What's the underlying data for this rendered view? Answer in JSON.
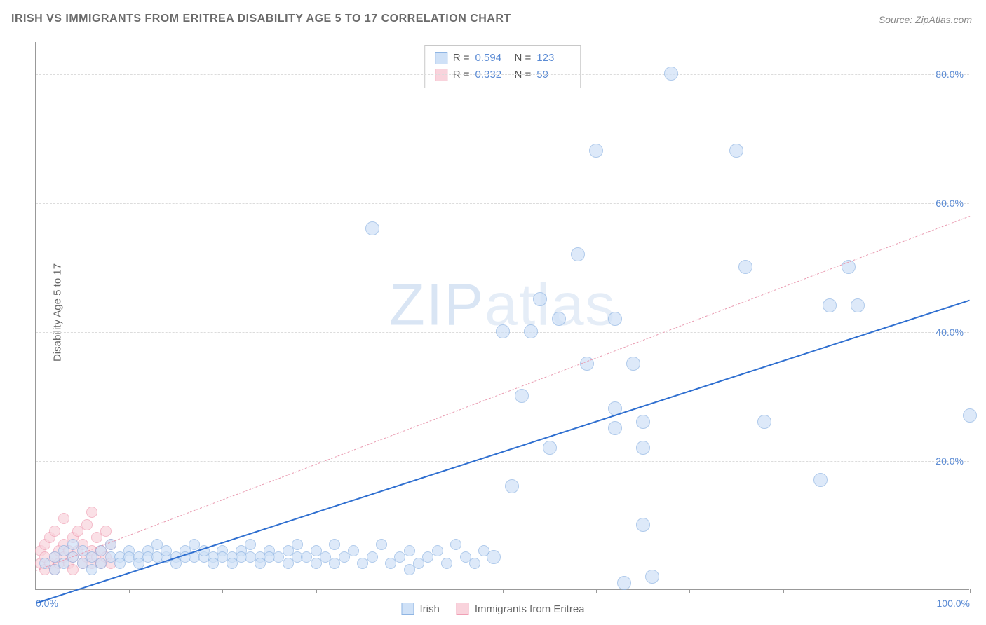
{
  "title": "IRISH VS IMMIGRANTS FROM ERITREA DISABILITY AGE 5 TO 17 CORRELATION CHART",
  "source_prefix": "Source: ",
  "source": "ZipAtlas.com",
  "ylabel": "Disability Age 5 to 17",
  "watermark_bold": "ZIP",
  "watermark_light": "atlas",
  "chart": {
    "type": "scatter",
    "xlim": [
      0,
      100
    ],
    "ylim": [
      0,
      85
    ],
    "x_tick_positions": [
      0,
      10,
      20,
      30,
      40,
      50,
      60,
      70,
      80,
      90,
      100
    ],
    "x_tick_labels": {
      "0": "0.0%",
      "100": "100.0%"
    },
    "y_ticks": [
      20,
      40,
      60,
      80
    ],
    "y_tick_labels": [
      "20.0%",
      "40.0%",
      "60.0%",
      "80.0%"
    ],
    "grid_color": "#dcdcdc",
    "axis_color": "#999999",
    "tick_label_color": "#5b8bd4",
    "background_color": "#ffffff",
    "point_radius": 8,
    "series": [
      {
        "name": "Irish",
        "fill": "#cfe1f7",
        "stroke": "#8fb5e3",
        "trend_color": "#2f6fd0",
        "trend_style": "solid",
        "trend": {
          "x1": 0,
          "y1": -2,
          "x2": 100,
          "y2": 45
        },
        "R": "0.594",
        "N": "123",
        "points": [
          [
            1,
            4
          ],
          [
            2,
            5
          ],
          [
            2,
            3
          ],
          [
            3,
            6
          ],
          [
            3,
            4
          ],
          [
            4,
            5
          ],
          [
            4,
            7
          ],
          [
            5,
            4
          ],
          [
            5,
            6
          ],
          [
            6,
            5
          ],
          [
            6,
            3
          ],
          [
            7,
            6
          ],
          [
            7,
            4
          ],
          [
            8,
            5
          ],
          [
            8,
            7
          ],
          [
            9,
            5
          ],
          [
            9,
            4
          ],
          [
            10,
            6
          ],
          [
            10,
            5
          ],
          [
            11,
            5
          ],
          [
            11,
            4
          ],
          [
            12,
            6
          ],
          [
            12,
            5
          ],
          [
            13,
            5
          ],
          [
            13,
            7
          ],
          [
            14,
            5
          ],
          [
            14,
            6
          ],
          [
            15,
            5
          ],
          [
            15,
            4
          ],
          [
            16,
            6
          ],
          [
            16,
            5
          ],
          [
            17,
            5
          ],
          [
            17,
            7
          ],
          [
            18,
            5
          ],
          [
            18,
            6
          ],
          [
            19,
            5
          ],
          [
            19,
            4
          ],
          [
            20,
            6
          ],
          [
            20,
            5
          ],
          [
            21,
            5
          ],
          [
            21,
            4
          ],
          [
            22,
            6
          ],
          [
            22,
            5
          ],
          [
            23,
            5
          ],
          [
            23,
            7
          ],
          [
            24,
            5
          ],
          [
            24,
            4
          ],
          [
            25,
            6
          ],
          [
            25,
            5
          ],
          [
            26,
            5
          ],
          [
            27,
            6
          ],
          [
            27,
            4
          ],
          [
            28,
            5
          ],
          [
            28,
            7
          ],
          [
            29,
            5
          ],
          [
            30,
            6
          ],
          [
            30,
            4
          ],
          [
            31,
            5
          ],
          [
            32,
            7
          ],
          [
            32,
            4
          ],
          [
            33,
            5
          ],
          [
            34,
            6
          ],
          [
            35,
            4
          ],
          [
            36,
            5
          ],
          [
            37,
            7
          ],
          [
            38,
            4
          ],
          [
            39,
            5
          ],
          [
            40,
            6
          ],
          [
            40,
            3
          ],
          [
            41,
            4
          ],
          [
            42,
            5
          ],
          [
            43,
            6
          ],
          [
            44,
            4
          ],
          [
            45,
            7
          ],
          [
            46,
            5
          ],
          [
            47,
            4
          ],
          [
            48,
            6
          ],
          [
            49,
            5
          ],
          [
            36,
            56
          ],
          [
            50,
            40
          ],
          [
            51,
            16
          ],
          [
            52,
            30
          ],
          [
            53,
            40
          ],
          [
            54,
            45
          ],
          [
            55,
            22
          ],
          [
            56,
            42
          ],
          [
            58,
            52
          ],
          [
            59,
            35
          ],
          [
            60,
            68
          ],
          [
            62,
            25
          ],
          [
            62,
            28
          ],
          [
            62,
            42
          ],
          [
            63,
            1
          ],
          [
            64,
            35
          ],
          [
            65,
            10
          ],
          [
            65,
            22
          ],
          [
            65,
            26
          ],
          [
            66,
            2
          ],
          [
            68,
            80
          ],
          [
            75,
            68
          ],
          [
            76,
            50
          ],
          [
            78,
            26
          ],
          [
            84,
            17
          ],
          [
            85,
            44
          ],
          [
            87,
            50
          ],
          [
            88,
            44
          ],
          [
            100,
            27
          ]
        ]
      },
      {
        "name": "Immigrants from Eritrea",
        "fill": "#f9d3dc",
        "stroke": "#f0a0b5",
        "trend_color": "#e99ab0",
        "trend_style": "dashed",
        "trend": {
          "x1": 0,
          "y1": 3,
          "x2": 100,
          "y2": 58
        },
        "R": "0.332",
        "N": "59",
        "points": [
          [
            0.5,
            4
          ],
          [
            0.5,
            6
          ],
          [
            1,
            3
          ],
          [
            1,
            5
          ],
          [
            1,
            7
          ],
          [
            1.5,
            4
          ],
          [
            1.5,
            8
          ],
          [
            2,
            5
          ],
          [
            2,
            3
          ],
          [
            2,
            9
          ],
          [
            2.5,
            6
          ],
          [
            2.5,
            4
          ],
          [
            3,
            5
          ],
          [
            3,
            7
          ],
          [
            3,
            11
          ],
          [
            3.5,
            4
          ],
          [
            3.5,
            6
          ],
          [
            4,
            5
          ],
          [
            4,
            8
          ],
          [
            4,
            3
          ],
          [
            4.5,
            6
          ],
          [
            4.5,
            9
          ],
          [
            5,
            4
          ],
          [
            5,
            7
          ],
          [
            5.5,
            5
          ],
          [
            5.5,
            10
          ],
          [
            6,
            6
          ],
          [
            6,
            4
          ],
          [
            6,
            12
          ],
          [
            6.5,
            5
          ],
          [
            6.5,
            8
          ],
          [
            7,
            4
          ],
          [
            7,
            6
          ],
          [
            7.5,
            5
          ],
          [
            7.5,
            9
          ],
          [
            8,
            7
          ],
          [
            8,
            4
          ]
        ]
      }
    ]
  },
  "legend_bottom": [
    {
      "label": "Irish",
      "fill": "#cfe1f7",
      "stroke": "#8fb5e3"
    },
    {
      "label": "Immigrants from Eritrea",
      "fill": "#f9d3dc",
      "stroke": "#f0a0b5"
    }
  ]
}
